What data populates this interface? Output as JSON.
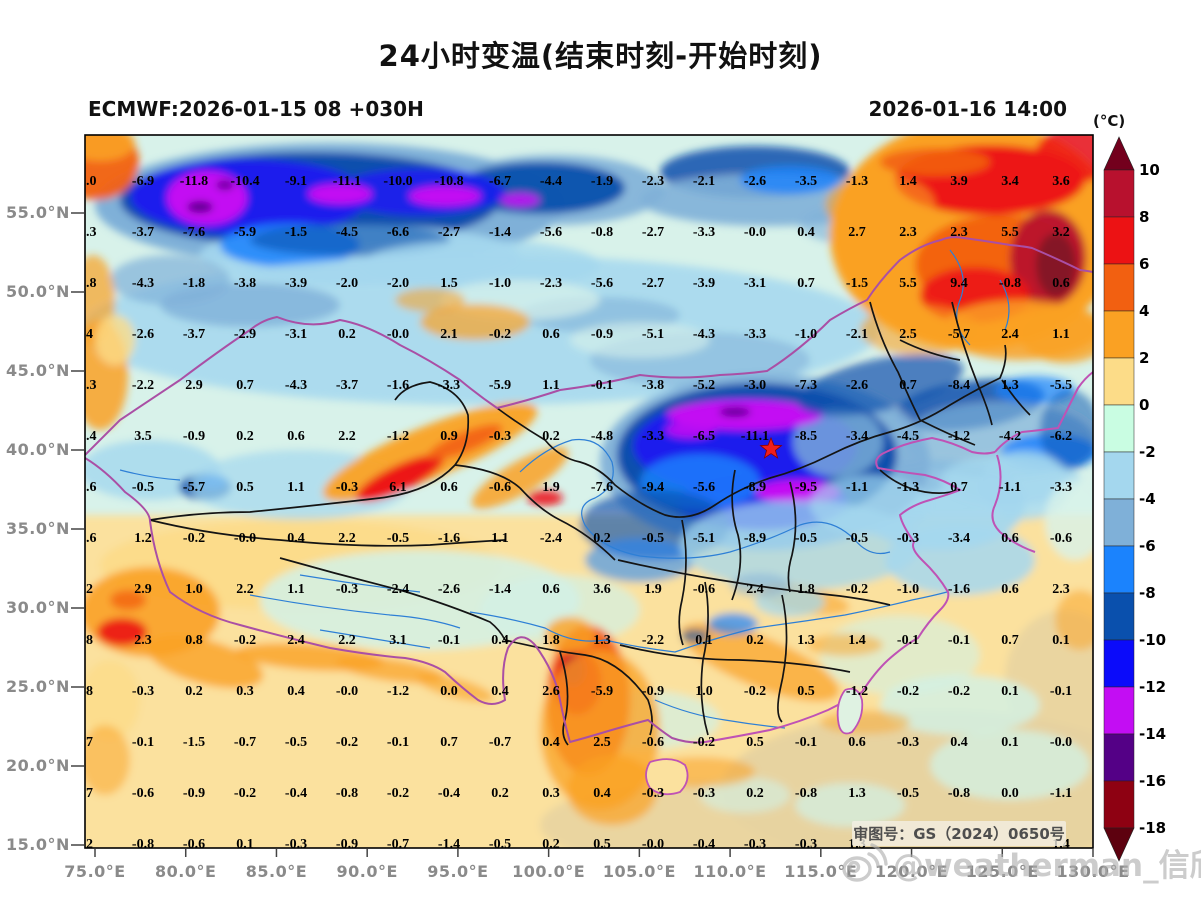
{
  "title": "24小时变温(结束时刻-开始时刻)",
  "header": {
    "model_run": "ECMWF:2026-01-15 08 +030H",
    "valid_time": "2026-01-16 14:00"
  },
  "colorbar": {
    "unit_label": "(°C)",
    "tick_labels": [
      "10",
      "8",
      "6",
      "4",
      "2",
      "0",
      "-2",
      "-4",
      "-6",
      "-8",
      "-10",
      "-12",
      "-14",
      "-16",
      "-18"
    ],
    "segment_colors": [
      "#b8112e",
      "#ec1214",
      "#f26011",
      "#faa123",
      "#fcdc88",
      "#c9fde2",
      "#a4d7ee",
      "#7fb0d8",
      "#1b83fd",
      "#0a50ad",
      "#0b0bfa",
      "#c30df3",
      "#540086",
      "#8e0112"
    ],
    "arrow_top_color": "#73001d",
    "arrow_bottom_color": "#5d010f"
  },
  "map": {
    "lat_labels": [
      "55.0°N",
      "50.0°N",
      "45.0°N",
      "40.0°N",
      "35.0°N",
      "30.0°N",
      "25.0°N",
      "20.0°N",
      "15.0°N"
    ],
    "lon_labels": [
      "75.0°E",
      "80.0°E",
      "85.0°E",
      "90.0°E",
      "95.0°E",
      "100.0°E",
      "105.0°E",
      "110.0°E",
      "115.0°E",
      "120.0°E",
      "125.0°E",
      "130.0°E"
    ],
    "review_badge": "审图号：GS（2024）0650号",
    "star_marker": "beijing-star",
    "grid": {
      "rows": [
        [
          ".0",
          "-6.9",
          "-11.8",
          "-10.4",
          "-9.1",
          "-11.1",
          "-10.0",
          "-10.8",
          "-6.7",
          "-4.4",
          "-1.9",
          "-2.3",
          "-2.1",
          "-2.6",
          "-3.5",
          "-1.3",
          "1.4",
          "3.9",
          "3.4",
          "3.6"
        ],
        [
          ".3",
          "-3.7",
          "-7.6",
          "-5.9",
          "-1.5",
          "-4.5",
          "-6.6",
          "-2.7",
          "-1.4",
          "-5.6",
          "-0.8",
          "-2.7",
          "-3.3",
          "-0.0",
          "0.4",
          "2.7",
          "2.3",
          "2.3",
          "5.5",
          "3.2"
        ],
        [
          ".8",
          "-4.3",
          "-1.8",
          "-3.8",
          "-3.9",
          "-2.0",
          "-2.0",
          "1.5",
          "-1.0",
          "-2.3",
          "-5.6",
          "-2.7",
          "-3.9",
          "-3.1",
          "0.7",
          "-1.5",
          "5.5",
          "9.4",
          "-0.8",
          "0.6"
        ],
        [
          "4",
          "-2.6",
          "-3.7",
          "-2.9",
          "-3.1",
          "0.2",
          "-0.0",
          "2.1",
          "-0.2",
          "0.6",
          "-0.9",
          "-5.1",
          "-4.3",
          "-3.3",
          "-1.0",
          "-2.1",
          "2.5",
          "-5.7",
          "2.4",
          "1.1"
        ],
        [
          ".3",
          "-2.2",
          "2.9",
          "0.7",
          "-4.3",
          "-3.7",
          "-1.6",
          "-3.3",
          "-5.9",
          "1.1",
          "-0.1",
          "-3.8",
          "-5.2",
          "-3.0",
          "-7.3",
          "-2.6",
          "0.7",
          "-8.4",
          "1.3",
          "-5.5"
        ],
        [
          ".4",
          "3.5",
          "-0.9",
          "0.2",
          "0.6",
          "2.2",
          "-1.2",
          "0.9",
          "-0.3",
          "0.2",
          "-4.8",
          "-3.3",
          "-6.5",
          "-11.1",
          "-8.5",
          "-3.4",
          "-4.5",
          "-1.2",
          "-4.2",
          "-6.2"
        ],
        [
          ".6",
          "-0.5",
          "-5.7",
          "0.5",
          "1.1",
          "-0.3",
          "6.1",
          "0.6",
          "-0.6",
          "1.9",
          "-7.6",
          "-9.4",
          "-5.6",
          "-8.9",
          "-9.5",
          "-1.1",
          "-1.3",
          "0.7",
          "-1.1",
          "-3.3"
        ],
        [
          ".6",
          "1.2",
          "-0.2",
          "-0.0",
          "0.4",
          "2.2",
          "-0.5",
          "-1.6",
          "1.1",
          "-2.4",
          "0.2",
          "-0.5",
          "-5.1",
          "-8.9",
          "-0.5",
          "-0.5",
          "-0.3",
          "-3.4",
          "0.6",
          "-0.6"
        ],
        [
          "2",
          "2.9",
          "1.0",
          "2.2",
          "1.1",
          "-0.3",
          "-2.4",
          "-2.6",
          "-1.4",
          "0.6",
          "3.6",
          "1.9",
          "-0.6",
          "2.4",
          "1.8",
          "-0.2",
          "-1.0",
          "-1.6",
          "0.6",
          "2.3"
        ],
        [
          "8",
          "2.3",
          "0.8",
          "-0.2",
          "2.4",
          "2.2",
          "3.1",
          "-0.1",
          "0.4",
          "1.8",
          "1.3",
          "-2.2",
          "0.1",
          "0.2",
          "1.3",
          "1.4",
          "-0.1",
          "-0.1",
          "0.7",
          "0.1"
        ],
        [
          "8",
          "-0.3",
          "0.2",
          "0.3",
          "0.4",
          "-0.0",
          "-1.2",
          "0.0",
          "0.4",
          "2.6",
          "-5.9",
          "-0.9",
          "1.0",
          "-0.2",
          "0.5",
          "-1.2",
          "-0.2",
          "-0.2",
          "0.1",
          "-0.1"
        ],
        [
          "7",
          "-0.1",
          "-1.5",
          "-0.7",
          "-0.5",
          "-0.2",
          "-0.1",
          "0.7",
          "-0.7",
          "0.4",
          "2.5",
          "-0.6",
          "-0.2",
          "0.5",
          "-0.1",
          "0.6",
          "-0.3",
          "0.4",
          "0.1",
          "-0.0"
        ],
        [
          "7",
          "-0.6",
          "-0.9",
          "-0.2",
          "-0.4",
          "-0.8",
          "-0.2",
          "-0.4",
          "0.2",
          "0.3",
          "0.4",
          "-0.3",
          "-0.3",
          "0.2",
          "-0.8",
          "1.3",
          "-0.5",
          "-0.8",
          "0.0",
          "-1.1"
        ],
        [
          "2",
          "-0.8",
          "-0.6",
          "0.1",
          "-0.3",
          "-0.9",
          "-0.7",
          "-1.4",
          "-0.5",
          "0.2",
          "0.5",
          "-0.0",
          "-0.4",
          "-0.3",
          "-0.3",
          "1.3",
          "",
          "",
          "",
          "1.4"
        ]
      ]
    }
  },
  "watermark": {
    "text": "@weatherman_信欣",
    "logo": "weibo-logo"
  }
}
